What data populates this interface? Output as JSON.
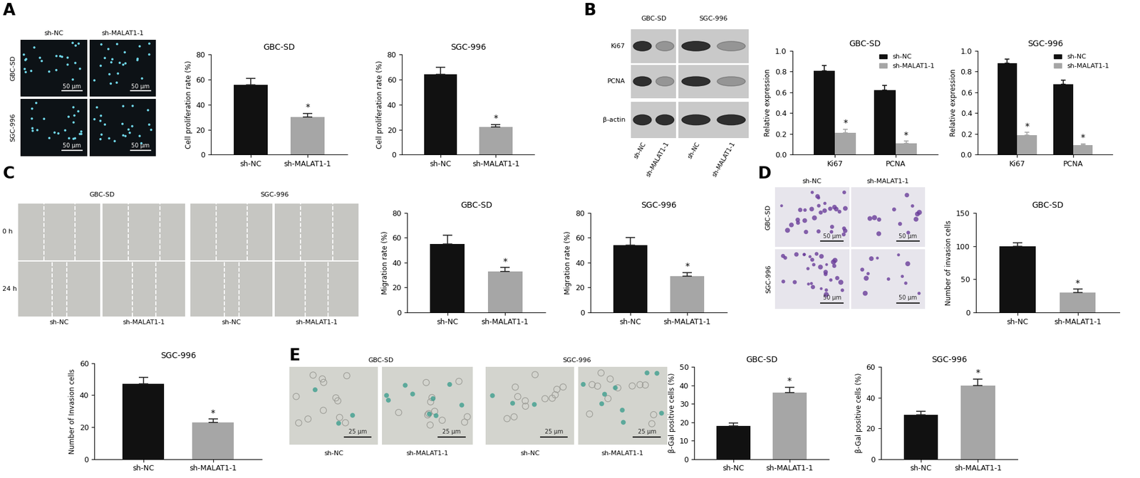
{
  "chart_data": [
    {
      "type": "bar",
      "title": "GBC-SD",
      "y_label": "Cell proliferation rate (%)",
      "categories": [
        "sh-NC",
        "sh-MALAT1-1"
      ],
      "values": [
        56,
        30
      ],
      "errors": [
        5,
        3
      ],
      "colors": [
        "#111111",
        "#a6a6a6"
      ],
      "ylim": [
        0,
        80
      ],
      "yticks": [
        0,
        20,
        40,
        60,
        80
      ],
      "annotations": [
        {
          "category": "sh-MALAT1-1",
          "text": "*"
        }
      ]
    },
    {
      "type": "bar",
      "title": "SGC-996",
      "y_label": "Cell proliferation rate (%)",
      "categories": [
        "sh-NC",
        "sh-MALAT1-1"
      ],
      "values": [
        64,
        22
      ],
      "errors": [
        6,
        2
      ],
      "colors": [
        "#111111",
        "#a6a6a6"
      ],
      "ylim": [
        0,
        80
      ],
      "yticks": [
        0,
        20,
        40,
        60,
        80
      ],
      "annotations": [
        {
          "category": "sh-MALAT1-1",
          "text": "*"
        }
      ]
    },
    {
      "type": "bar",
      "title": "GBC-SD",
      "y_label": "Relative expression",
      "categories": [
        "Ki67",
        "PCNA"
      ],
      "series": [
        {
          "name": "sh-NC",
          "color": "#111111",
          "values": [
            0.81,
            0.62
          ],
          "errors": [
            0.05,
            0.045
          ]
        },
        {
          "name": "sh-MALAT1-1",
          "color": "#a6a6a6",
          "values": [
            0.21,
            0.11
          ],
          "errors": [
            0.035,
            0.02
          ]
        }
      ],
      "ylim": [
        0,
        1.0
      ],
      "yticks": [
        {
          "value": 0,
          "label": "0.0"
        },
        {
          "value": 0.2,
          "label": "0.2"
        },
        {
          "value": 0.4,
          "label": "0.4"
        },
        {
          "value": 0.6,
          "label": "0.6"
        },
        {
          "value": 0.8,
          "label": "0.8"
        },
        {
          "value": 1.0,
          "label": "1.0"
        }
      ],
      "legend": "upper right",
      "annotations": [
        {
          "series": "sh-MALAT1-1",
          "category": "Ki67",
          "text": "*"
        },
        {
          "series": "sh-MALAT1-1",
          "category": "PCNA",
          "text": "*"
        }
      ]
    },
    {
      "type": "bar",
      "title": "SGC-996",
      "y_label": "Relative expression",
      "categories": [
        "Ki67",
        "PCNA"
      ],
      "series": [
        {
          "name": "sh-NC",
          "color": "#111111",
          "values": [
            0.88,
            0.68
          ],
          "errors": [
            0.04,
            0.04
          ]
        },
        {
          "name": "sh-MALAT1-1",
          "color": "#a6a6a6",
          "values": [
            0.19,
            0.09
          ],
          "errors": [
            0.025,
            0.015
          ]
        }
      ],
      "ylim": [
        0,
        1.0
      ],
      "yticks": [
        {
          "value": 0,
          "label": "0.0"
        },
        {
          "value": 0.2,
          "label": "0.2"
        },
        {
          "value": 0.4,
          "label": "0.4"
        },
        {
          "value": 0.6,
          "label": "0.6"
        },
        {
          "value": 0.8,
          "label": "0.8"
        },
        {
          "value": 1.0,
          "label": "1.0"
        }
      ],
      "legend": "upper right",
      "annotations": [
        {
          "series": "sh-MALAT1-1",
          "category": "Ki67",
          "text": "*"
        },
        {
          "series": "sh-MALAT1-1",
          "category": "PCNA",
          "text": "*"
        }
      ]
    },
    {
      "type": "bar",
      "title": "GBC-SD",
      "y_label": "Migration rate (%)",
      "categories": [
        "sh-NC",
        "sh-MALAT1-1"
      ],
      "values": [
        55,
        33
      ],
      "errors": [
        7,
        3
      ],
      "colors": [
        "#111111",
        "#a6a6a6"
      ],
      "ylim": [
        0,
        80
      ],
      "yticks": [
        0,
        20,
        40,
        60,
        80
      ],
      "annotations": [
        {
          "category": "sh-MALAT1-1",
          "text": "*"
        }
      ]
    },
    {
      "type": "bar",
      "title": "SGC-996",
      "y_label": "Migration rate (%)",
      "categories": [
        "sh-NC",
        "sh-MALAT1-1"
      ],
      "values": [
        54,
        29
      ],
      "errors": [
        6,
        3
      ],
      "colors": [
        "#111111",
        "#a6a6a6"
      ],
      "ylim": [
        0,
        80
      ],
      "yticks": [
        0,
        20,
        40,
        60,
        80
      ],
      "annotations": [
        {
          "category": "sh-MALAT1-1",
          "text": "*"
        }
      ]
    },
    {
      "type": "bar",
      "title": "GBC-SD",
      "y_label": "Number of invasion cells",
      "categories": [
        "sh-NC",
        "sh-MALAT1-1"
      ],
      "values": [
        100,
        30
      ],
      "errors": [
        5,
        5
      ],
      "colors": [
        "#111111",
        "#a6a6a6"
      ],
      "ylim": [
        0,
        150
      ],
      "yticks": [
        0,
        50,
        100,
        150
      ],
      "annotations": [
        {
          "category": "sh-MALAT1-1",
          "text": "*"
        }
      ]
    },
    {
      "type": "bar",
      "title": "SGC-996",
      "y_label": "Number of Invasion cells",
      "categories": [
        "sh-NC",
        "sh-MALAT1-1"
      ],
      "values": [
        47,
        23
      ],
      "errors": [
        4,
        2
      ],
      "colors": [
        "#111111",
        "#a6a6a6"
      ],
      "ylim": [
        0,
        60
      ],
      "yticks": [
        0,
        20,
        40,
        60
      ],
      "annotations": [
        {
          "category": "sh-MALAT1-1",
          "text": "*"
        }
      ]
    },
    {
      "type": "bar",
      "title": "GBC-SD",
      "y_label": "β-Gal positive cells (%)",
      "categories": [
        "sh-NC",
        "sh-MALAT1-1"
      ],
      "values": [
        18,
        36
      ],
      "errors": [
        1.5,
        3
      ],
      "colors": [
        "#111111",
        "#a6a6a6"
      ],
      "ylim": [
        0,
        50
      ],
      "yticks": [
        0,
        10,
        20,
        30,
        40,
        50
      ],
      "annotations": [
        {
          "category": "sh-MALAT1-1",
          "text": "*"
        }
      ]
    },
    {
      "type": "bar",
      "title": "SGC-996",
      "y_label": "β-Gal positive cells (%)",
      "categories": [
        "sh-NC",
        "sh-MALAT1-1"
      ],
      "values": [
        29,
        48
      ],
      "errors": [
        2,
        4
      ],
      "colors": [
        "#111111",
        "#a6a6a6"
      ],
      "ylim": [
        0,
        60
      ],
      "yticks": [
        0,
        20,
        40,
        60
      ],
      "annotations": [
        {
          "category": "sh-MALAT1-1",
          "text": "*"
        }
      ]
    }
  ],
  "panels": {
    "letters": [
      "A",
      "B",
      "C",
      "D",
      "E"
    ],
    "A": {
      "columns": [
        "sh-NC",
        "sh-MALAT1-1"
      ],
      "rows": [
        "GBC-SD",
        "SGC-996"
      ],
      "scale_bar": "50 μm"
    },
    "B": {
      "cell_lines": [
        "GBC-SD",
        "SGC-996"
      ],
      "proteins": [
        "Ki67",
        "PCNA",
        "β-actin"
      ],
      "lanes": [
        "sh-NC",
        "sh-MALAT1-1"
      ]
    },
    "C": {
      "cell_lines": [
        "GBC-SD",
        "SGC-996"
      ],
      "times": [
        "0 h",
        "24 h"
      ],
      "lanes": [
        "sh-NC",
        "sh-MALAT1-1"
      ]
    },
    "D": {
      "columns": [
        "sh-NC",
        "sh-MALAT1-1"
      ],
      "rows": [
        "GBC-SD",
        "SGC-996"
      ],
      "scale_bar": "50 μm"
    },
    "E": {
      "cell_lines": [
        "GBC-SD",
        "SGC-996"
      ],
      "groups": [
        "sh-NC",
        "sh-MALAT1-1"
      ],
      "scale_bar": "25 μm"
    }
  }
}
